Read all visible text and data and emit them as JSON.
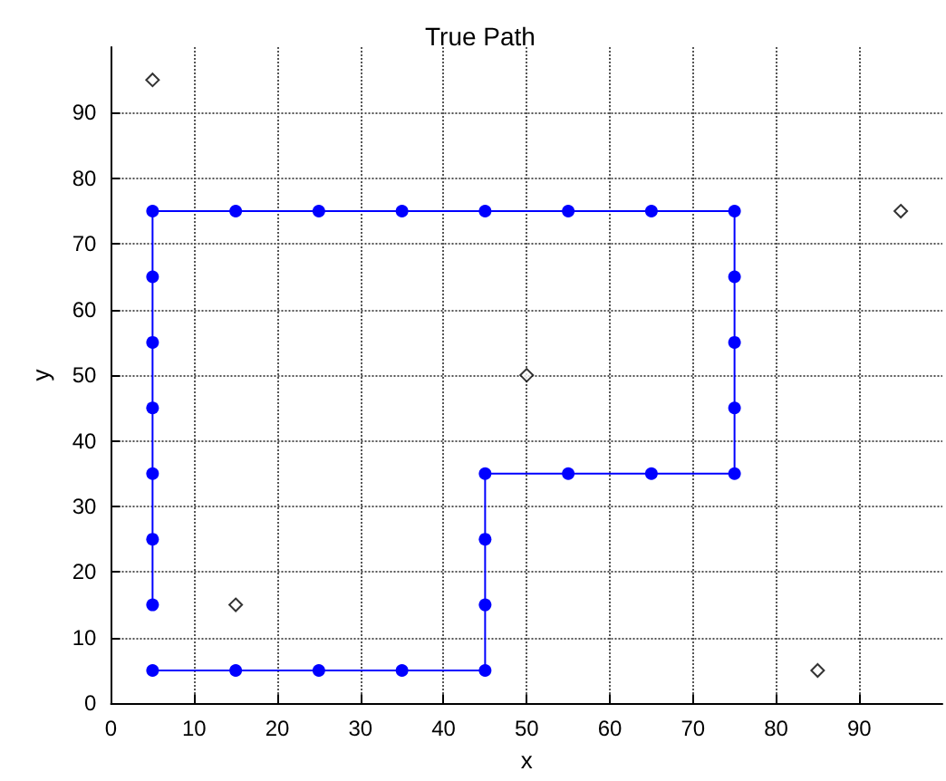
{
  "chart_data": {
    "type": "line",
    "title": "True Path",
    "xlabel": "x",
    "ylabel": "y",
    "xlim": [
      0,
      100
    ],
    "ylim": [
      0,
      100
    ],
    "xticks": [
      0,
      10,
      20,
      30,
      40,
      50,
      60,
      70,
      80,
      90
    ],
    "yticks": [
      0,
      10,
      20,
      30,
      40,
      50,
      60,
      70,
      80,
      90
    ],
    "grid": true,
    "series": [
      {
        "color": "#0000ff",
        "marker": "circle",
        "line_style": "solid",
        "x": [
          5,
          15,
          25,
          35,
          45,
          45,
          45,
          45,
          55,
          65,
          75,
          75,
          75,
          75,
          75,
          65,
          55,
          45,
          35,
          25,
          15,
          5,
          5,
          5,
          5,
          5,
          5,
          5
        ],
        "values": [
          5,
          5,
          5,
          5,
          5,
          15,
          25,
          35,
          35,
          35,
          35,
          45,
          55,
          65,
          75,
          75,
          75,
          75,
          75,
          75,
          75,
          75,
          65,
          55,
          45,
          35,
          25,
          15
        ]
      },
      {
        "type": "scatter",
        "color": "#000000",
        "marker": "diamond",
        "x": [
          5,
          15,
          50,
          85,
          95
        ],
        "values": [
          95,
          15,
          50,
          5,
          75
        ]
      }
    ]
  }
}
